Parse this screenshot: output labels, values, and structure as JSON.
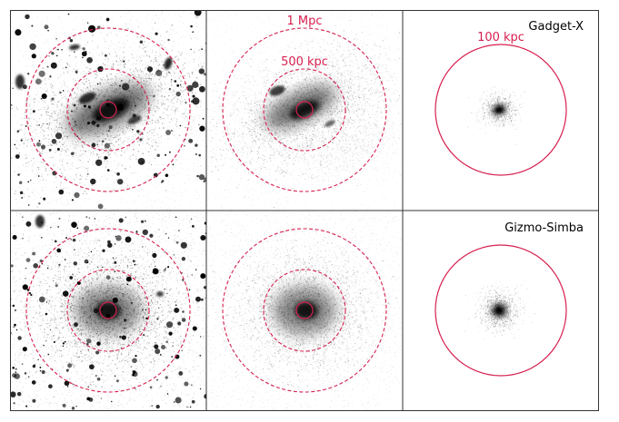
{
  "labels": {
    "radius_1mpc": "1 Mpc",
    "radius_500kpc": "500 kpc",
    "radius_100kpc": "100 kpc",
    "sim_top": "Gadget-X",
    "sim_bottom": "Gizmo-Simba"
  },
  "colors": {
    "circle": "#d6204f",
    "frame": "#333333",
    "particles": "#000000"
  },
  "layout_grid": {
    "rows": 2,
    "cols": 3
  }
}
